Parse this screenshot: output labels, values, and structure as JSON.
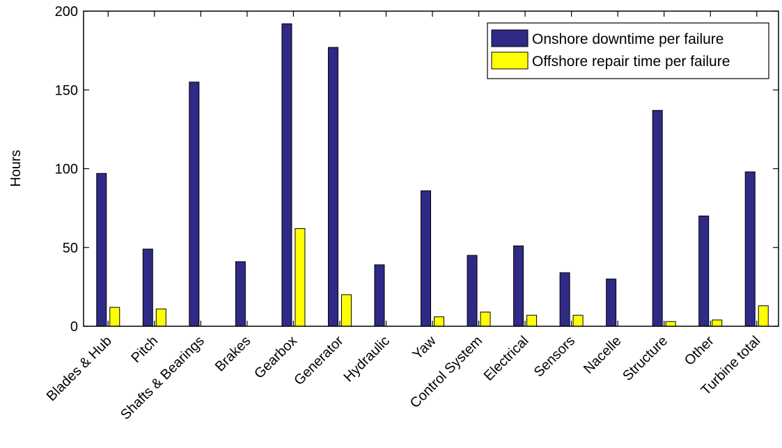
{
  "chart_data": {
    "type": "bar",
    "title": "",
    "xlabel": "",
    "ylabel": "Hours",
    "ylim": [
      0,
      200
    ],
    "yticks": [
      0,
      50,
      100,
      150,
      200
    ],
    "grid": false,
    "legend_position": "top-right",
    "categories": [
      "Blades & Hub",
      "Pitch",
      "Shafts & Bearings",
      "Brakes",
      "Gearbox",
      "Generator",
      "Hydraulic",
      "Yaw",
      "Control System",
      "Electrical",
      "Sensors",
      "Nacelle",
      "Structure",
      "Other",
      "Turbine total"
    ],
    "series": [
      {
        "name": "Onshore downtime per failure",
        "color": "#2e2a85",
        "values": [
          97,
          49,
          155,
          41,
          192,
          177,
          39,
          86,
          45,
          51,
          34,
          30,
          137,
          70,
          98
        ]
      },
      {
        "name": "Offshore repair time per failure",
        "color": "#ffff00",
        "values": [
          12,
          11,
          0,
          0,
          62,
          20,
          0,
          6,
          9,
          7,
          7,
          0,
          3,
          4,
          13
        ]
      }
    ]
  }
}
